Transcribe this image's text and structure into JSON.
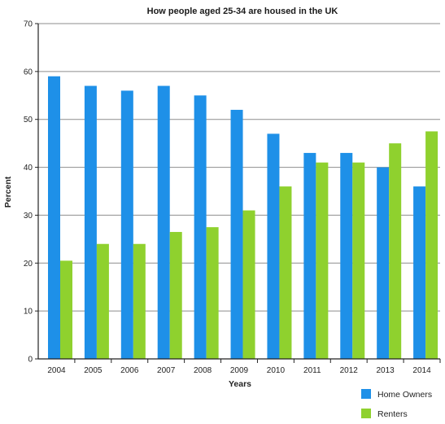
{
  "chart_data": {
    "type": "bar",
    "title": "How people aged 25-34 are housed in the UK",
    "xlabel": "Years",
    "ylabel": "Percent",
    "categories": [
      "2004",
      "2005",
      "2006",
      "2007",
      "2008",
      "2009",
      "2010",
      "2011",
      "2012",
      "2013",
      "2014"
    ],
    "series": [
      {
        "name": "Home Owners",
        "color": "#1e90e8",
        "values": [
          59,
          57,
          56,
          57,
          55,
          52,
          47,
          43,
          43,
          40,
          36
        ]
      },
      {
        "name": "Renters",
        "color": "#8fd12e",
        "values": [
          20.5,
          24,
          24,
          26.5,
          27.5,
          31,
          36,
          41,
          41,
          45,
          47.5
        ]
      }
    ],
    "ylim": [
      0,
      70
    ],
    "yticks": [
      0,
      10,
      20,
      30,
      40,
      50,
      60,
      70
    ],
    "grid": true,
    "legend_position": "bottom-right"
  }
}
